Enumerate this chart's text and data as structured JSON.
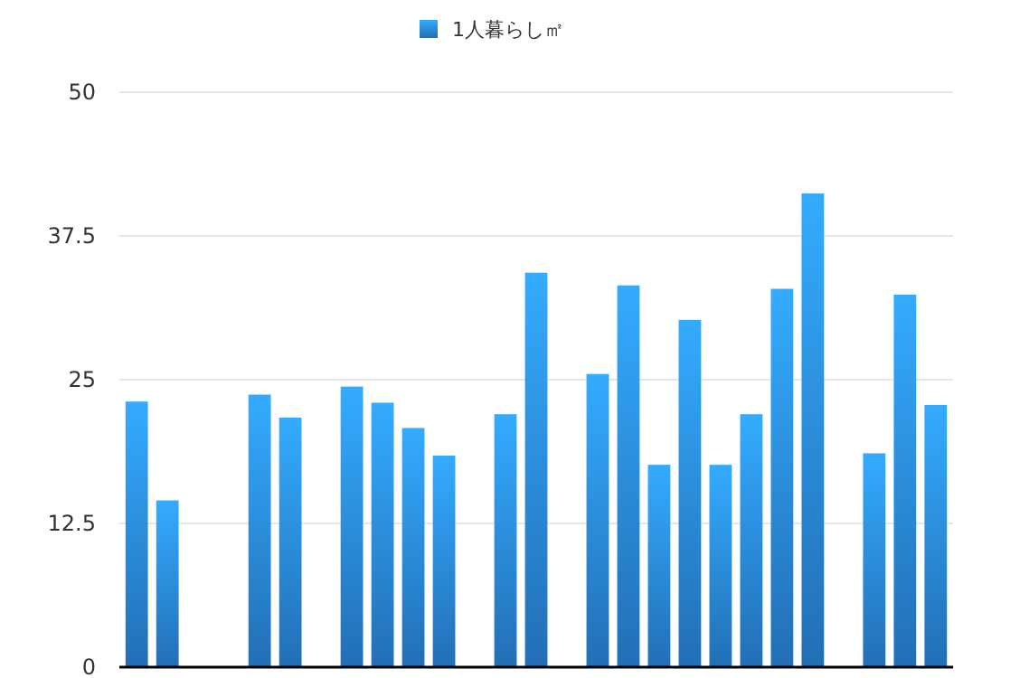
{
  "chart_data": {
    "type": "bar",
    "categories": [
      null,
      null,
      null,
      null,
      null,
      null,
      null,
      null,
      null,
      null,
      null,
      null,
      null,
      null,
      null,
      null,
      null,
      null,
      null,
      null,
      null,
      null,
      null,
      null,
      null,
      null,
      null
    ],
    "series": [
      {
        "name": "1人暮らし㎡",
        "color": "#2a8ae0",
        "values": [
          23.1,
          14.5,
          null,
          null,
          23.7,
          21.7,
          null,
          24.4,
          23.0,
          20.8,
          18.4,
          null,
          22.0,
          34.3,
          null,
          25.5,
          33.2,
          17.6,
          30.2,
          17.6,
          22.0,
          32.9,
          41.2,
          null,
          18.6,
          32.4,
          22.8
        ]
      }
    ],
    "ylim": [
      0,
      50
    ],
    "yticks": [
      0,
      12.5,
      25,
      37.5,
      50
    ],
    "grid": "y",
    "legend": "top"
  }
}
